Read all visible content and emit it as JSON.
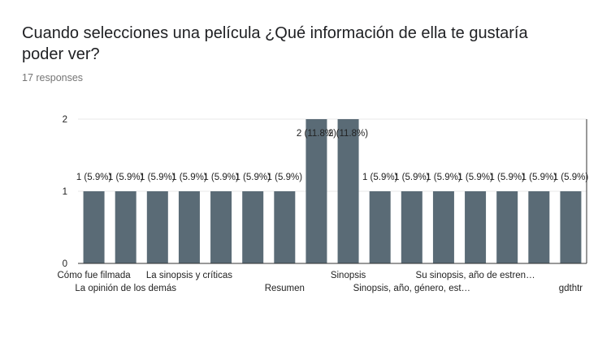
{
  "question": {
    "title": "Cuando selecciones una película ¿Qué información de ella te gustaría poder ver?",
    "responses": "17 responses"
  },
  "colors": {
    "bar": "#5a6b76",
    "grid": "#e8e8e8",
    "axis": "#333333",
    "text": "#222222"
  },
  "chart_data": {
    "type": "bar",
    "title": "",
    "xlabel": "",
    "ylabel": "",
    "ylim": [
      0,
      2
    ],
    "yticks": [
      "0",
      "1",
      "2"
    ],
    "grid": true,
    "categories": [
      "Cómo fue filmada",
      "La opinión de los demás",
      "",
      "La sinopsis y críticas",
      "",
      "",
      "Resumen",
      "",
      "Sinopsis",
      "",
      "Sinopsis, año, género, est…",
      "",
      "Su sinopsis, año de estren…",
      "",
      "",
      "gdthtr"
    ],
    "values": [
      1,
      1,
      1,
      1,
      1,
      1,
      1,
      2,
      2,
      1,
      1,
      1,
      1,
      1,
      1,
      1
    ],
    "data_labels": [
      "1 (5.9%)",
      "1 (5.9%)",
      "1 (5.9%)",
      "1 (5.9%)",
      "1 (5.9%)",
      "1 (5.9%)",
      "1 (5.9%)",
      "2 (11.8%)",
      "2 (11.8%)",
      "1 (5.9%)",
      "1 (5.9%)",
      "1 (5.9%)",
      "1 (5.9%)",
      "1 (5.9%)",
      "1 (5.9%)",
      "1 (5.9%)"
    ]
  }
}
